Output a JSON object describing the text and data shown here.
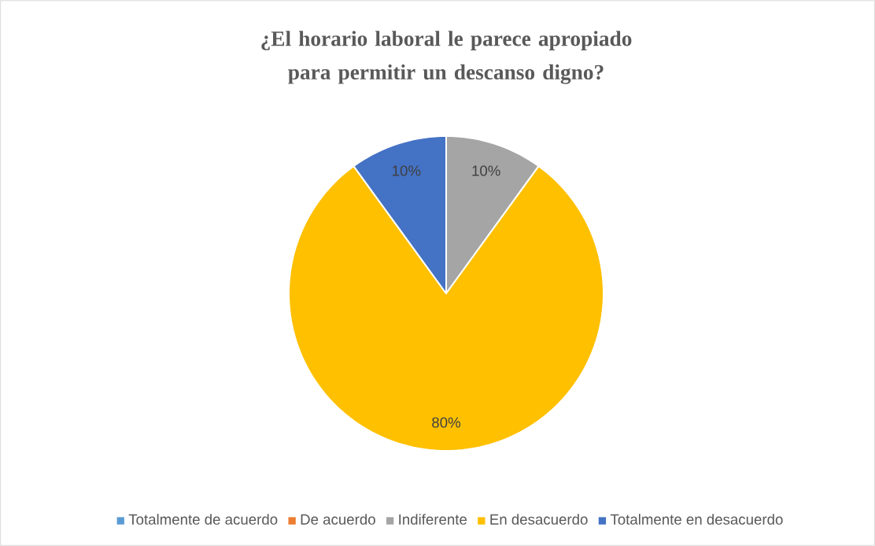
{
  "chart_data": {
    "type": "pie",
    "title": "¿El horario laboral le parece apropiado para permitir un descanso digno?",
    "categories": [
      "Totalmente de acuerdo",
      "De acuerdo",
      "Indiferente",
      "En desacuerdo",
      "Totalmente en desacuerdo"
    ],
    "values": [
      0,
      0,
      10,
      80,
      10
    ],
    "colors": [
      "#5b9bd5",
      "#ed7d31",
      "#a5a5a5",
      "#ffc000",
      "#4472c4"
    ],
    "value_labels": [
      null,
      null,
      "10%",
      "80%",
      "10%"
    ],
    "legend": "bottom"
  }
}
